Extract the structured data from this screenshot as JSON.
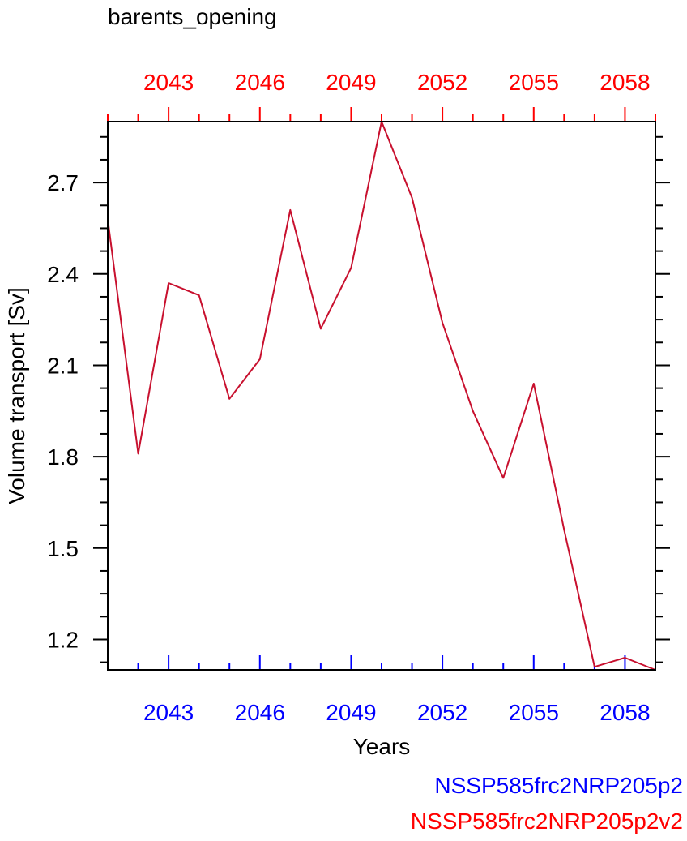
{
  "chart_data": {
    "type": "line",
    "title": "barents_opening",
    "xlabel": "Years",
    "ylabel": "Volume transport [Sv]",
    "xlim": [
      2041,
      2059
    ],
    "ylim": [
      1.1,
      2.9
    ],
    "x_ticks": [
      2043,
      2046,
      2049,
      2052,
      2055,
      2058
    ],
    "y_ticks": [
      1.2,
      1.5,
      1.8,
      2.1,
      2.4,
      2.7
    ],
    "y_tick_labels": [
      "1.2",
      "1.5",
      "1.8",
      "2.1",
      "2.4",
      "2.7"
    ],
    "grid": false,
    "x_axes": {
      "bottom_color": "#0000ff",
      "top_color": "#ff0000"
    },
    "legend": {
      "placement": "bottom-right",
      "entries": [
        {
          "label": "NSSP585frc2NRP205p2",
          "color": "#0000ff"
        },
        {
          "label": "NSSP585frc2NRP205p2v2",
          "color": "#ff0000"
        }
      ]
    },
    "series": [
      {
        "color": "#c8102e",
        "x": [
          2041,
          2042,
          2043,
          2044,
          2045,
          2046,
          2047,
          2048,
          2049,
          2050,
          2051,
          2052,
          2053,
          2054,
          2055,
          2056,
          2057,
          2058,
          2059
        ],
        "values": [
          2.58,
          1.81,
          2.37,
          2.33,
          1.99,
          2.12,
          2.61,
          2.22,
          2.42,
          2.9,
          2.65,
          2.24,
          1.95,
          1.73,
          2.04,
          1.56,
          1.11,
          1.14,
          1.1
        ]
      }
    ]
  }
}
